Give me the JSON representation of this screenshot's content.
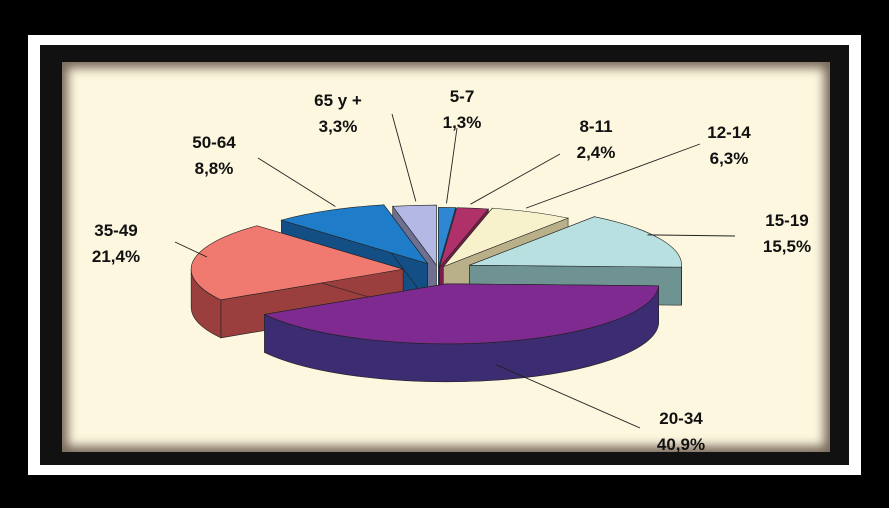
{
  "chart_data": {
    "type": "pie",
    "style": "3d-exploded",
    "slices": [
      {
        "category": "5-7",
        "value_label": "1,3%",
        "value": 1.3,
        "top": "#2f86d1",
        "side": "#1c5c9a"
      },
      {
        "category": "8-11",
        "value_label": "2,4%",
        "value": 2.4,
        "top": "#b0306a",
        "side": "#7a1d49"
      },
      {
        "category": "12-14",
        "value_label": "6,3%",
        "value": 6.3,
        "top": "#f8f2cc",
        "side": "#b9b089"
      },
      {
        "category": "15-19",
        "value_label": "15,5%",
        "value": 15.5,
        "top": "#b8e0e0",
        "side": "#6f9393"
      },
      {
        "category": "20-34",
        "value_label": "40,9%",
        "value": 40.9,
        "top": "#7e2a90",
        "side": "#3c2c72"
      },
      {
        "category": "35-49",
        "value_label": "21,4%",
        "value": 21.4,
        "top": "#f07a70",
        "side": "#9b3e3e"
      },
      {
        "category": "50-64",
        "value_label": "8,8%",
        "value": 8.8,
        "top": "#1e7cc8",
        "side": "#134f85"
      },
      {
        "category": "65 y +",
        "value_label": "3,3%",
        "value": 3.3,
        "top": "#b4b8e4",
        "side": "#6f6f92"
      }
    ],
    "legend": "none",
    "data_labels": "outside with leader lines"
  }
}
